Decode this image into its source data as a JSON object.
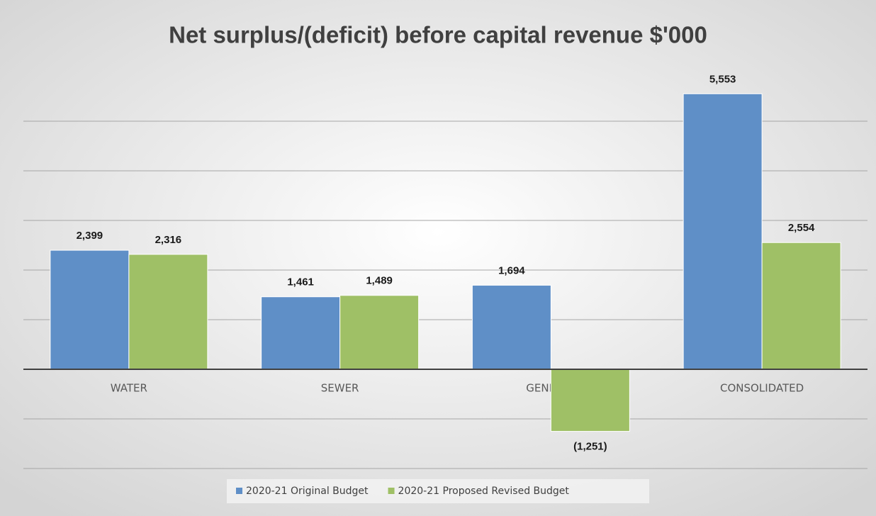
{
  "chart_data": {
    "type": "bar",
    "title": "Net surplus/(deficit) before capital revenue $'000",
    "categories": [
      "WATER",
      "SEWER",
      "GENERAL",
      "CONSOLIDATED"
    ],
    "series": [
      {
        "name": "2020-21 Original Budget",
        "color": "#5f8fc7",
        "values": [
          2399,
          1461,
          1694,
          5553
        ],
        "value_labels": [
          "2,399",
          "1,461",
          "1,694",
          "5,553"
        ]
      },
      {
        "name": "2020-21 Proposed Revised Budget",
        "color": "#9fc066",
        "values": [
          2316,
          1489,
          -1251,
          2554
        ],
        "value_labels": [
          "2,316",
          "1,489",
          "(1,251)",
          "2,554"
        ]
      }
    ],
    "ylim": [
      -2000,
      6000
    ],
    "yticks": [
      -2000,
      -1000,
      0,
      1000,
      2000,
      3000,
      4000,
      5000
    ],
    "grid": true,
    "legend": "bottom"
  }
}
